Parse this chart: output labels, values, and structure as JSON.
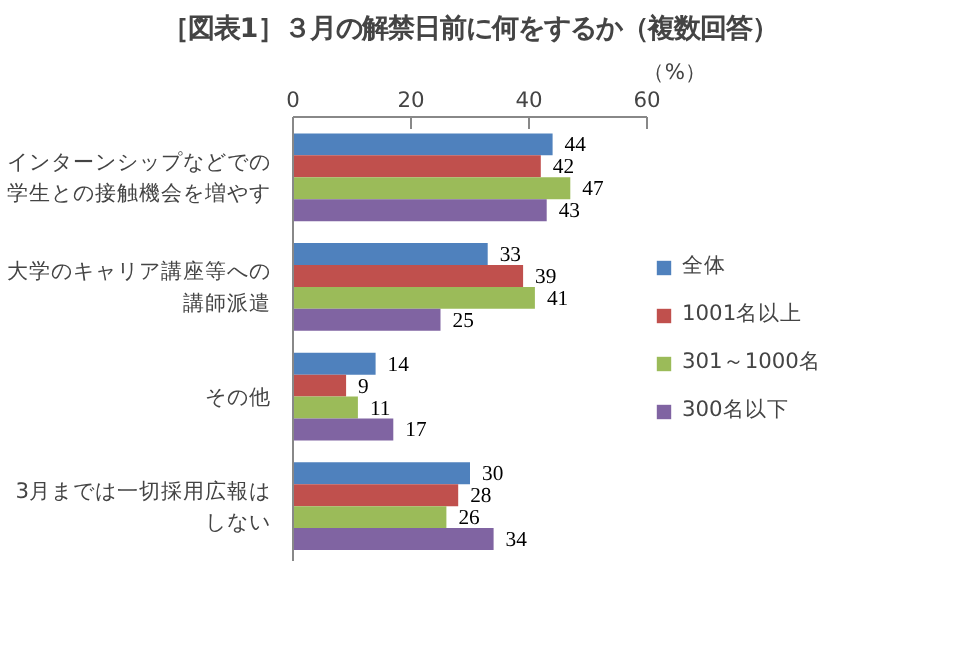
{
  "chart_data": {
    "type": "bar",
    "orientation": "horizontal",
    "title": "［図表1］３月の解禁日前に何をするか（複数回答）",
    "xlabel": "（%）",
    "categories": [
      "インターンシップなどでの学生との接触機会を増やす",
      "大学のキャリア講座等への講師派遣",
      "その他",
      "3月までは一切採用広報はしない"
    ],
    "series": [
      {
        "name": "全体",
        "color": "#4f81bd",
        "values": [
          44,
          33,
          14,
          30
        ]
      },
      {
        "name": "1001名以上",
        "color": "#c0504d",
        "values": [
          42,
          39,
          9,
          28
        ]
      },
      {
        "name": "301～1000名",
        "color": "#9bbb59",
        "values": [
          47,
          41,
          11,
          26
        ]
      },
      {
        "name": "300名以下",
        "color": "#8064a2",
        "values": [
          43,
          25,
          17,
          34
        ]
      }
    ],
    "xlim": [
      0,
      60
    ],
    "xticks": [
      0,
      20,
      40,
      60
    ],
    "data_labels": true,
    "legend": "right"
  }
}
